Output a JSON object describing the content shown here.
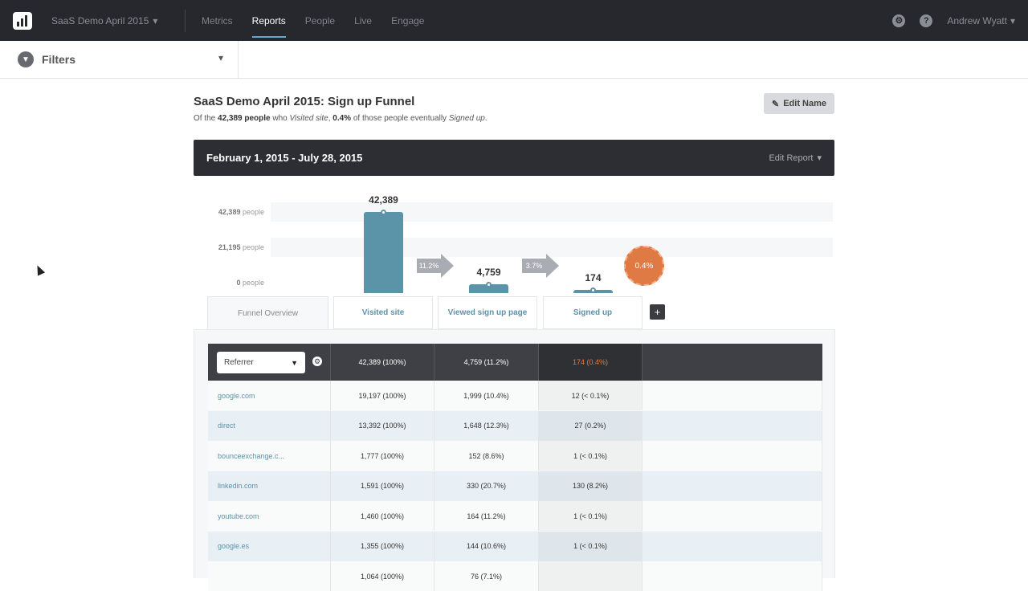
{
  "nav": {
    "project": "SaaS Demo April 2015",
    "items": [
      "Metrics",
      "Reports",
      "People",
      "Live",
      "Engage"
    ],
    "active": "Reports",
    "user": "Andrew Wyatt"
  },
  "filters": {
    "label": "Filters"
  },
  "report": {
    "title": "SaaS Demo April 2015: Sign up Funnel",
    "sub_prefix": "Of the ",
    "sub_people": "42,389 people",
    "sub_mid": " who ",
    "sub_event1": "Visited site",
    "sub_mid2": ", ",
    "sub_pct": "0.4%",
    "sub_mid3": " of those people eventually ",
    "sub_event2": "Signed up",
    "sub_end": ".",
    "edit_name": "Edit Name",
    "date_range": "February 1, 2015 - July 28, 2015",
    "edit_report": "Edit Report"
  },
  "chart_data": {
    "type": "bar",
    "categories": [
      "Visited site",
      "Viewed sign up page",
      "Signed up"
    ],
    "values": [
      42389,
      4759,
      174
    ],
    "value_labels": [
      "42,389",
      "4,759",
      "174"
    ],
    "conversion_labels": [
      "11.2%",
      "3.7%"
    ],
    "overall_conversion": "0.4%",
    "y_ticks": [
      {
        "num": "42,389",
        "unit": "people"
      },
      {
        "num": "21,195",
        "unit": "people"
      },
      {
        "num": "0",
        "unit": "people"
      }
    ],
    "ylim": [
      0,
      42389
    ],
    "colors": {
      "bar": "#5b93a8",
      "final": "#e07a45",
      "arrow": "#a9adb3"
    }
  },
  "tabs": [
    "Funnel Overview",
    "Visited site",
    "Viewed sign up page",
    "Signed up"
  ],
  "table": {
    "select_label": "Referrer",
    "headers": [
      "42,389 (100%)",
      "4,759 (11.2%)",
      "174 (0.4%)"
    ],
    "rows": [
      [
        "google.com",
        "19,197 (100%)",
        "1,999 (10.4%)",
        "12 (< 0.1%)"
      ],
      [
        "direct",
        "13,392 (100%)",
        "1,648 (12.3%)",
        "27 (0.2%)"
      ],
      [
        "bounceexchange.c...",
        "1,777 (100%)",
        "152 (8.6%)",
        "1 (< 0.1%)"
      ],
      [
        "linkedin.com",
        "1,591 (100%)",
        "330 (20.7%)",
        "130 (8.2%)"
      ],
      [
        "youtube.com",
        "1,460 (100%)",
        "164 (11.2%)",
        "1 (< 0.1%)"
      ],
      [
        "google.es",
        "1,355 (100%)",
        "144 (10.6%)",
        "1 (< 0.1%)"
      ],
      [
        "",
        "1,064 (100%)",
        "76 (7.1%)",
        ""
      ]
    ]
  }
}
